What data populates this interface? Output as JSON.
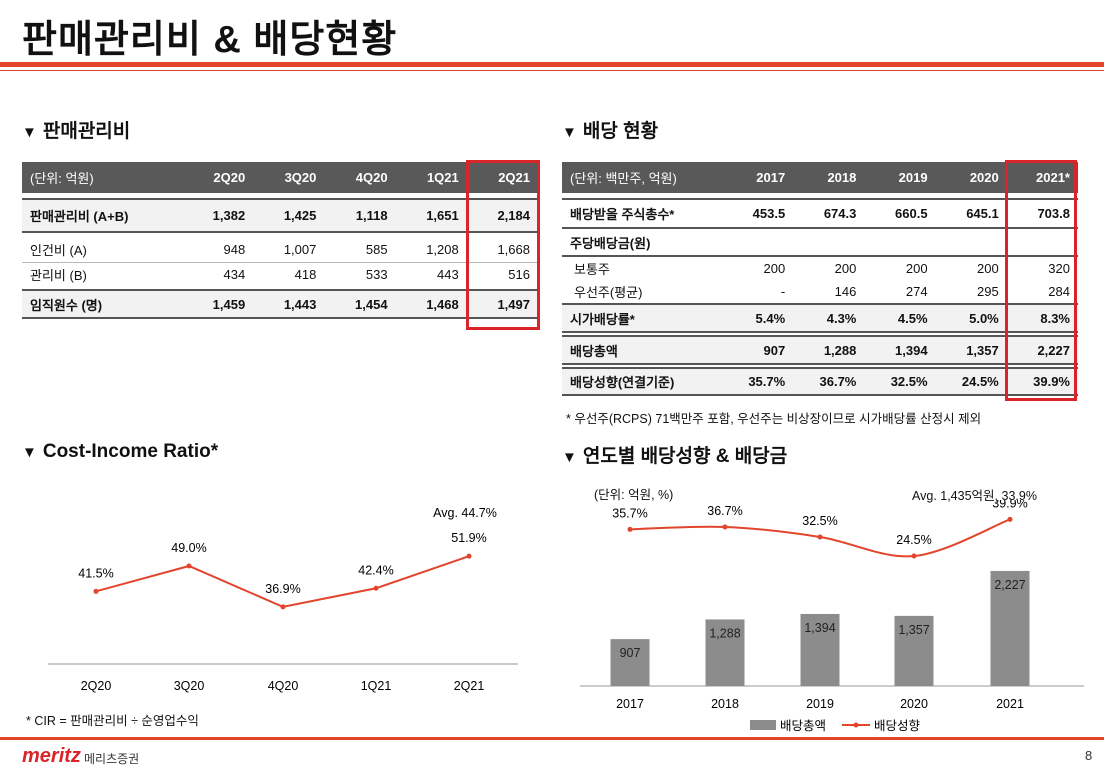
{
  "page": {
    "title": "판매관리비 & 배당현황",
    "page_number": "8"
  },
  "brand": {
    "logo": "meritz",
    "logo_sub": "메리츠증권",
    "accent": "#e2442c"
  },
  "sga": {
    "section_title": "판매관리비",
    "unit": "(단위: 억원)",
    "columns": [
      "2Q20",
      "3Q20",
      "4Q20",
      "1Q21",
      "2Q21"
    ],
    "rows": [
      {
        "label": "판매관리비 (A+B)",
        "values": [
          "1,382",
          "1,425",
          "1,118",
          "1,651",
          "2,184"
        ]
      },
      {
        "label": "인건비 (A)",
        "values": [
          "948",
          "1,007",
          "585",
          "1,208",
          "1,668"
        ]
      },
      {
        "label": "관리비 (B)",
        "values": [
          "434",
          "418",
          "533",
          "443",
          "516"
        ]
      },
      {
        "label": "임직원수 (명)",
        "values": [
          "1,459",
          "1,443",
          "1,454",
          "1,468",
          "1,497"
        ]
      }
    ]
  },
  "dividend": {
    "section_title": "배당 현황",
    "unit": "(단위: 백만주, 억원)",
    "columns": [
      "2017",
      "2018",
      "2019",
      "2020",
      "2021*"
    ],
    "shares_label": "배당받을 주식총수*",
    "shares": [
      "453.5",
      "674.3",
      "660.5",
      "645.1",
      "703.8"
    ],
    "dps_label": "주당배당금(원)",
    "common_label": "보통주",
    "common": [
      "200",
      "200",
      "200",
      "200",
      "320"
    ],
    "preferred_label": "우선주(평균)",
    "preferred": [
      "-",
      "146",
      "274",
      "295",
      "284"
    ],
    "yield_label": "시가배당률*",
    "yield": [
      "5.4%",
      "4.3%",
      "4.5%",
      "5.0%",
      "8.3%"
    ],
    "total_label": "배당총액",
    "total": [
      "907",
      "1,288",
      "1,394",
      "1,357",
      "2,227"
    ],
    "payout_label": "배당성향(연결기준)",
    "payout": [
      "35.7%",
      "36.7%",
      "32.5%",
      "24.5%",
      "39.9%"
    ],
    "note": "* 우선주(RCPS) 71백만주 포함, 우선주는 비상장이므로 시가배당률 산정시 제외"
  },
  "cir": {
    "section_title": "Cost-Income Ratio*",
    "avg_label": "Avg. 44.7%",
    "note": "* CIR = 판매관리비 ÷ 순영업수익"
  },
  "payout_chart": {
    "section_title": "연도별 배당성향 & 배당금",
    "unit": "(단위: 억원, %)",
    "avg_label": "Avg. 1,435억원, 33.9%",
    "legend_bar": "배당총액",
    "legend_line": "배당성향"
  },
  "chart_data": [
    {
      "type": "line",
      "categories": [
        "2Q20",
        "3Q20",
        "4Q20",
        "1Q21",
        "2Q21"
      ],
      "series": [
        {
          "values": [
            41.5,
            49.0,
            36.9,
            42.4,
            51.9
          ]
        }
      ],
      "value_labels": [
        "41.5%",
        "49.0%",
        "36.9%",
        "42.4%",
        "51.9%"
      ],
      "title": "Cost-Income Ratio*",
      "ylim": [
        20,
        70
      ],
      "color": "#e2442c",
      "grid": false
    },
    {
      "type": "bar",
      "categories": [
        "2017",
        "2018",
        "2019",
        "2020",
        "2021"
      ],
      "series": [
        {
          "name": "배당총액",
          "type": "bar",
          "values": [
            907,
            1288,
            1394,
            1357,
            2227
          ],
          "labels": [
            "907",
            "1,288",
            "1,394",
            "1,357",
            "2,227"
          ],
          "color": "#8c8c8c"
        },
        {
          "name": "배당성향",
          "type": "line",
          "values": [
            35.7,
            36.7,
            32.5,
            24.5,
            39.9
          ],
          "labels": [
            "35.7%",
            "36.7%",
            "32.5%",
            "24.5%",
            "39.9%"
          ],
          "color": "#e2442c"
        }
      ],
      "ylim_bar": [
        0,
        3600
      ],
      "ylim_line": [
        -30,
        48
      ],
      "legend": "bottom",
      "grid": false
    }
  ]
}
